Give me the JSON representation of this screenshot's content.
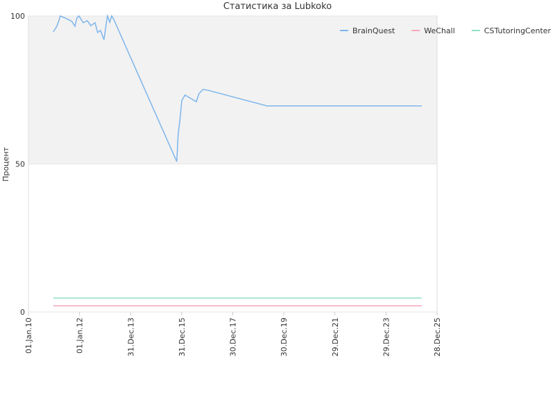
{
  "chart_data": {
    "type": "line",
    "title": "Статистика за Lubkoko",
    "y_label": "Процент",
    "xlim": [
      "2010-01-01",
      "2025-12-28"
    ],
    "xticks": [
      {
        "value": "2010-01-01",
        "label": "01.Jan.10"
      },
      {
        "value": "2012-01-01",
        "label": "01.Jan.12"
      },
      {
        "value": "2013-12-31",
        "label": "31.Dec.13"
      },
      {
        "value": "2015-12-31",
        "label": "31.Dec.15"
      },
      {
        "value": "2017-12-30",
        "label": "30.Dec.17"
      },
      {
        "value": "2019-12-30",
        "label": "30.Dec.19"
      },
      {
        "value": "2021-12-29",
        "label": "29.Dec.21"
      },
      {
        "value": "2023-12-29",
        "label": "29.Dec.23"
      },
      {
        "value": "2025-12-28",
        "label": "28.Dec.25"
      }
    ],
    "ylim": [
      0,
      100
    ],
    "yticks": [
      0,
      50,
      100
    ],
    "band": {
      "from": 50,
      "to": 100,
      "color": "#f2f2f2"
    },
    "legend": "top-right",
    "series": [
      {
        "name": "BrainQuest",
        "color": "#7cb5ec",
        "x": [
          "2010-12-22",
          "2011-02-11",
          "2011-03-12",
          "2011-04-01",
          "2011-07-09",
          "2011-09-16",
          "2011-10-27",
          "2011-11-25",
          "2011-12-24",
          "2012-02-22",
          "2012-04-22",
          "2012-06-10",
          "2012-08-10",
          "2012-09-17",
          "2012-10-26",
          "2012-12-16",
          "2013-01-15",
          "2013-02-03",
          "2013-03-08",
          "2013-04-05",
          "2013-05-05",
          "2015-10-22",
          "2015-11-10",
          "2015-12-09",
          "2016-01-01",
          "2016-02-17",
          "2016-07-26",
          "2016-09-04",
          "2016-11-02",
          "2017-01-10",
          "2019-05-04",
          "2025-05-22"
        ],
        "values": [
          94.6,
          96.5,
          98.4,
          100,
          99,
          98.1,
          96.5,
          99.3,
          100,
          97.7,
          98.4,
          96.7,
          97.7,
          94.4,
          95.1,
          92,
          97.2,
          100,
          97.9,
          100,
          98.8,
          50.8,
          59.7,
          65.6,
          71.4,
          73.3,
          71,
          73.8,
          75.2,
          74.9,
          69.6,
          69.6
        ]
      },
      {
        "name": "WeChall",
        "color": "#f4a6b8",
        "x": [
          "2010-12-22",
          "2025-05-22"
        ],
        "values": [
          2.1,
          2.1
        ]
      },
      {
        "name": "CSTutoringCenter",
        "color": "#90e0c0",
        "x": [
          "2010-12-22",
          "2025-05-22"
        ],
        "values": [
          4.7,
          4.7
        ]
      }
    ]
  }
}
